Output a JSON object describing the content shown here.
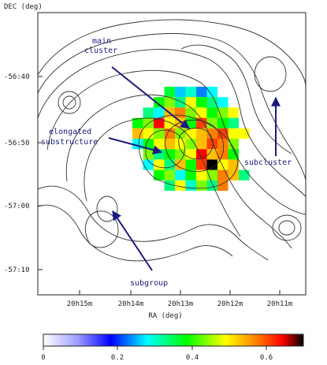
{
  "chart_data": {
    "type": "heatmap",
    "ylabel": "DEC (deg)",
    "xlabel": "RA (deg)",
    "xticks": [
      "20h15m",
      "20h14m",
      "20h13m",
      "20h12m",
      "20h11m"
    ],
    "yticks": [
      "-56:40",
      "-56:50",
      "-57:00",
      "-57:10"
    ],
    "colorbar": {
      "ticks": [
        "0",
        "0.2",
        "0.4",
        "0.6"
      ],
      "range": [
        0,
        0.7
      ],
      "colors": [
        "#ffffff",
        "#0000ff",
        "#00ffff",
        "#00ff00",
        "#ffff00",
        "#ff7f00",
        "#ff0000",
        "#000000"
      ]
    },
    "annotations": [
      {
        "id": "main-cluster",
        "text": [
          "main",
          "cluster"
        ]
      },
      {
        "id": "elongated-substructure",
        "text": [
          "elongated",
          "substructure"
        ]
      },
      {
        "id": "subcluster",
        "text": [
          "subcluster"
        ]
      },
      {
        "id": "subgroup",
        "text": [
          "subgroup"
        ]
      }
    ],
    "map_grid": {
      "ra": [
        20.215,
        20.227,
        20.239,
        20.251,
        20.263,
        20.275,
        20.287,
        20.299,
        20.311,
        20.323,
        20.335
      ],
      "dec": [
        -56.72,
        -56.74,
        -56.76,
        -56.78,
        -56.8,
        -56.82,
        -56.84,
        -56.86,
        -56.88,
        -56.9
      ],
      "values": [
        [
          null,
          null,
          null,
          0.28,
          0.18,
          0.22,
          0.15,
          0.2,
          null,
          null,
          null
        ],
        [
          null,
          null,
          0.3,
          0.35,
          0.25,
          0.4,
          0.3,
          0.25,
          0.2,
          null,
          null
        ],
        [
          null,
          0.25,
          0.2,
          0.45,
          0.5,
          0.35,
          0.4,
          0.3,
          0.35,
          0.4,
          null
        ],
        [
          0.3,
          0.35,
          0.6,
          0.4,
          0.45,
          0.3,
          0.55,
          0.35,
          0.3,
          0.25,
          null
        ],
        [
          0.45,
          0.4,
          0.35,
          0.5,
          0.35,
          0.4,
          0.45,
          0.5,
          0.55,
          0.4,
          0.4
        ],
        [
          0.2,
          0.3,
          0.4,
          0.45,
          0.4,
          0.35,
          0.45,
          0.55,
          0.5,
          0.35,
          null
        ],
        [
          null,
          0.35,
          0.25,
          0.3,
          0.35,
          0.4,
          0.6,
          0.45,
          0.5,
          0.3,
          null
        ],
        [
          null,
          0.2,
          0.4,
          0.25,
          0.45,
          0.3,
          0.55,
          0.7,
          0.4,
          0.45,
          null
        ],
        [
          null,
          null,
          0.3,
          0.35,
          0.2,
          0.3,
          0.4,
          0.35,
          0.5,
          0.45,
          0.25
        ],
        [
          null,
          null,
          null,
          0.25,
          0.4,
          0.22,
          0.35,
          0.25,
          0.5,
          null,
          null
        ]
      ]
    }
  }
}
